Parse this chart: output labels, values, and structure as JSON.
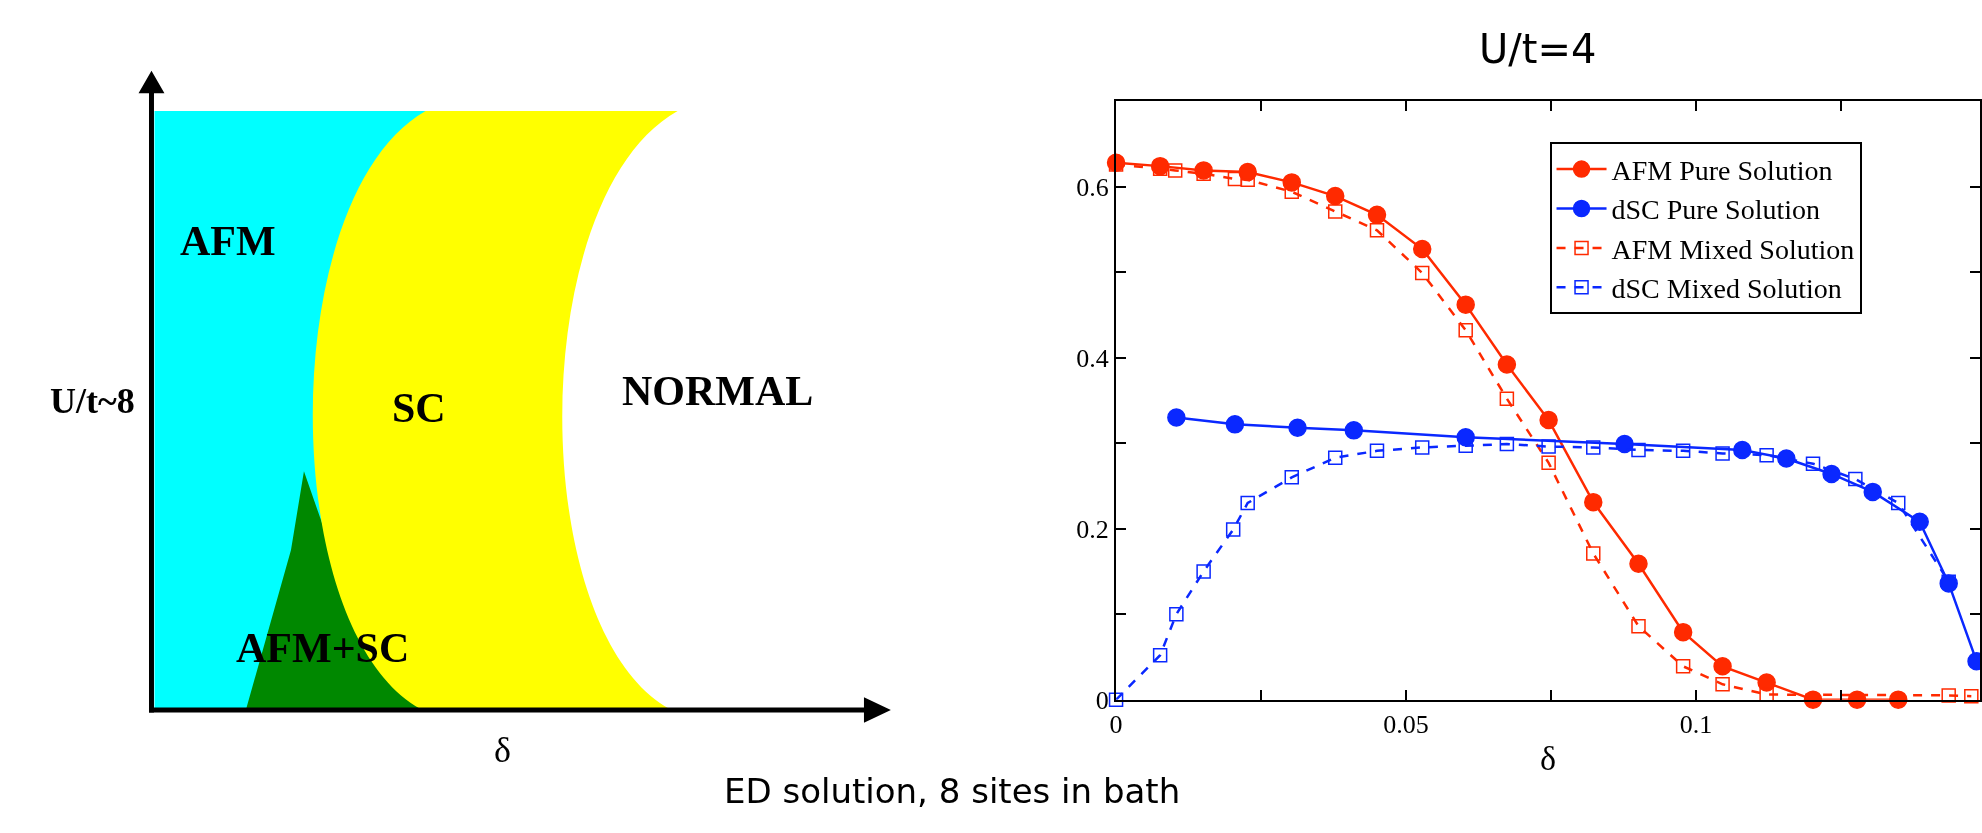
{
  "chart_data": [
    {
      "type": "other",
      "xlabel": "δ",
      "ylabel": "U/t~8",
      "annotations": [
        "AFM",
        "SC",
        "NORMAL",
        "AFM+SC",
        "ED solution, 8 sites in bath"
      ],
      "colors": [
        "#00ffff",
        "#ffff00",
        "#008800"
      ]
    },
    {
      "type": "line",
      "title": "U/t=4",
      "xlabel": "δ",
      "xlim": [
        0,
        0.149
      ],
      "ylim": [
        0,
        0.7
      ],
      "xticks": [
        0,
        {
          "value": 0.025,
          "label": null
        },
        0.05,
        {
          "value": 0.075,
          "label": null
        },
        0.1,
        {
          "value": 0.125,
          "label": null
        }
      ],
      "yticks": [
        0,
        {
          "value": 0.1,
          "label": null
        },
        0.2,
        {
          "value": 0.3,
          "label": null
        },
        0.4,
        {
          "value": 0.5,
          "label": null
        },
        0.6
      ],
      "legend": "top right",
      "series": [
        {
          "name": "AFM Pure Solution",
          "color": "#ff2a00",
          "marker": "circle",
          "line_style": "solid",
          "x": [
            0,
            0.0076,
            0.0151,
            0.0227,
            0.0303,
            0.0378,
            0.045,
            0.0528,
            0.0603,
            0.0674,
            0.0746,
            0.0823,
            0.0901,
            0.0978,
            0.1046,
            0.1122,
            0.1202,
            0.1278,
            0.1349
          ],
          "values": [
            0.628,
            0.624,
            0.619,
            0.617,
            0.605,
            0.589,
            0.567,
            0.527,
            0.462,
            0.392,
            0.327,
            0.231,
            0.159,
            0.079,
            0.039,
            0.02,
            0,
            0,
            0
          ]
        },
        {
          "name": "dSC Pure Solution",
          "color": "#0a28ff",
          "marker": "circle",
          "line_style": "solid",
          "x": [
            0.0104,
            0.0205,
            0.0313,
            0.041,
            0.0603,
            0.0877,
            0.108,
            0.1156,
            0.1234,
            0.1305,
            0.1386,
            0.1436,
            0.1484
          ],
          "values": [
            0.33,
            0.322,
            0.318,
            0.315,
            0.307,
            0.299,
            0.292,
            0.282,
            0.264,
            0.243,
            0.208,
            0.136,
            0.045
          ]
        },
        {
          "name": "AFM Mixed Solution",
          "color": "#ff2a00",
          "marker": "square",
          "line_style": "dashed",
          "x": [
            0,
            0.0076,
            0.0102,
            0.0151,
            0.0205,
            0.0227,
            0.0303,
            0.0378,
            0.045,
            0.0528,
            0.0603,
            0.0674,
            0.0746,
            0.0823,
            0.0901,
            0.0978,
            0.1046,
            0.1122,
            0.1436,
            0.1475
          ],
          "values": [
            0.626,
            0.621,
            0.619,
            0.615,
            0.609,
            0.608,
            0.594,
            0.571,
            0.549,
            0.499,
            0.432,
            0.352,
            0.277,
            0.171,
            0.086,
            0.039,
            0.018,
            0.006,
            0.005,
            0.004
          ]
        },
        {
          "name": "dSC Mixed Solution",
          "color": "#0a28ff",
          "marker": "square",
          "line_style": "dashed",
          "x": [
            0,
            0.0076,
            0.0104,
            0.0151,
            0.0202,
            0.0227,
            0.0303,
            0.0378,
            0.045,
            0.0528,
            0.0603,
            0.0674,
            0.0746,
            0.0823,
            0.0901,
            0.0978,
            0.1046,
            0.1122,
            0.1202,
            0.1275,
            0.1349,
            0.1436
          ],
          "values": [
            0,
            0.052,
            0.1,
            0.15,
            0.199,
            0.23,
            0.26,
            0.283,
            0.291,
            0.295,
            0.297,
            0.299,
            0.296,
            0.295,
            0.292,
            0.291,
            0.288,
            0.286,
            0.276,
            0.258,
            0.23,
            0.138
          ]
        }
      ]
    }
  ]
}
